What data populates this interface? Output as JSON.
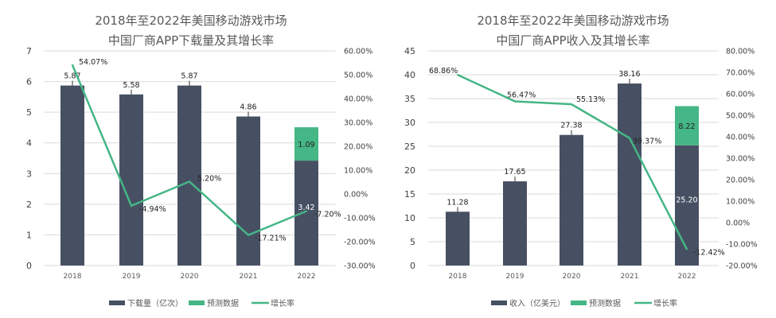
{
  "colors": {
    "bar": "#475063",
    "forecast": "#45b685",
    "line": "#45b685",
    "grid": "#d9d9d9"
  },
  "chart_data": [
    {
      "type": "bar",
      "title": [
        "2018年至2022年美国移动游戏市场",
        "中国厂商APP下载量及其增长率"
      ],
      "categories": [
        "2018",
        "2019",
        "2020",
        "2021",
        "2022"
      ],
      "series": [
        {
          "name": "下载量（亿次）",
          "values": [
            5.87,
            5.58,
            5.87,
            4.86,
            3.42
          ]
        },
        {
          "name": "预测数据",
          "values": [
            0,
            0,
            0,
            0,
            1.09
          ]
        },
        {
          "name": "增长率",
          "type": "line",
          "axis": "right",
          "values": [
            54.07,
            -4.94,
            5.2,
            -17.21,
            -7.2
          ]
        }
      ],
      "value_labels": [
        "5.87",
        "5.58",
        "5.87",
        "4.86",
        "3.42"
      ],
      "forecast_labels": [
        "",
        "",
        "",
        "",
        "1.09"
      ],
      "rate_labels": [
        "54.07%",
        "-4.94%",
        "5.20%",
        "-17.21%",
        "-7.20%"
      ],
      "ylim": [
        0,
        7
      ],
      "yticks": [
        "0",
        "1",
        "2",
        "3",
        "4",
        "5",
        "6",
        "7"
      ],
      "y2lim": [
        -30,
        60
      ],
      "y2ticks": [
        "-30.00%",
        "-20.00%",
        "-10.00%",
        "0.00%",
        "10.00%",
        "20.00%",
        "30.00%",
        "40.00%",
        "50.00%",
        "60.00%"
      ],
      "grid": true,
      "legend": "bottom"
    },
    {
      "type": "bar",
      "title": [
        "2018年至2022年美国移动游戏市场",
        "中国厂商APP收入及其增长率"
      ],
      "categories": [
        "2018",
        "2019",
        "2020",
        "2021",
        "2022"
      ],
      "series": [
        {
          "name": "收入（亿美元）",
          "values": [
            11.28,
            17.65,
            27.38,
            38.16,
            25.2
          ]
        },
        {
          "name": "预测数据",
          "values": [
            0,
            0,
            0,
            0,
            8.22
          ]
        },
        {
          "name": "增长率",
          "type": "line",
          "axis": "right",
          "values": [
            68.86,
            56.47,
            55.13,
            39.37,
            -12.42
          ]
        }
      ],
      "value_labels": [
        "11.28",
        "17.65",
        "27.38",
        "38.16",
        "25.20"
      ],
      "forecast_labels": [
        "",
        "",
        "",
        "",
        "8.22"
      ],
      "rate_labels": [
        "68.86%",
        "56.47%",
        "55.13%",
        "39.37%",
        "-12.42%"
      ],
      "ylim": [
        0,
        45
      ],
      "yticks": [
        "0",
        "5",
        "10",
        "15",
        "20",
        "25",
        "30",
        "35",
        "40",
        "45"
      ],
      "y2lim": [
        -20,
        80
      ],
      "y2ticks": [
        "-20.00%",
        "-10.00%",
        "0.00%",
        "10.00%",
        "20.00%",
        "30.00%",
        "40.00%",
        "50.00%",
        "60.00%",
        "70.00%",
        "80.00%"
      ],
      "grid": true,
      "legend": "bottom"
    }
  ]
}
